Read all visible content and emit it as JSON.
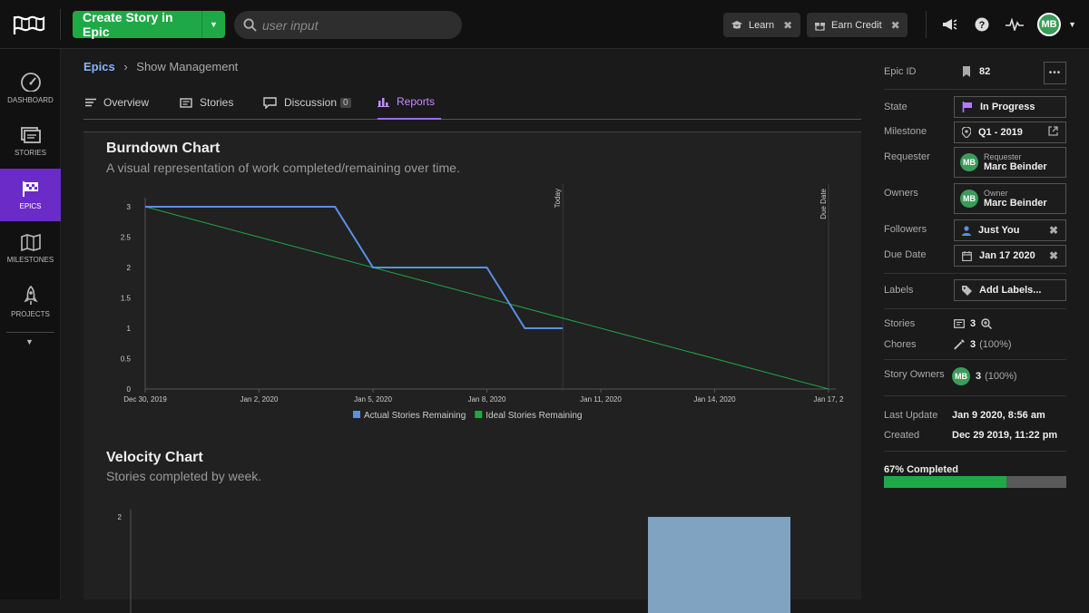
{
  "topbar": {
    "create_label": "Create Story in Epic",
    "search_placeholder": "user input",
    "learn_label": "Learn",
    "earn_label": "Earn Credit",
    "avatar_initials": "MB"
  },
  "sidebar": {
    "items": [
      {
        "label": "DASHBOARD",
        "icon": "dashboard-icon"
      },
      {
        "label": "STORIES",
        "icon": "stories-icon"
      },
      {
        "label": "EPICS",
        "icon": "epics-icon",
        "active": true
      },
      {
        "label": "MILESTONES",
        "icon": "milestones-icon"
      },
      {
        "label": "PROJECTS",
        "icon": "projects-icon"
      }
    ]
  },
  "breadcrumb": {
    "root": "Epics",
    "current": "Show Management"
  },
  "tabs": [
    {
      "label": "Overview"
    },
    {
      "label": "Stories"
    },
    {
      "label": "Discussion",
      "count": "0"
    },
    {
      "label": "Reports",
      "active": true
    }
  ],
  "burndown": {
    "title": "Burndown Chart",
    "subtitle": "A visual representation of work completed/remaining over time."
  },
  "velocity": {
    "title": "Velocity Chart",
    "subtitle": "Stories completed by week."
  },
  "chart_data": [
    {
      "type": "line",
      "title": "Burndown Chart",
      "x_tick_labels": [
        "Dec 30, 2019",
        "Jan 2, 2020",
        "Jan 5, 2020",
        "Jan 8, 2020",
        "Jan 11, 2020",
        "Jan 14, 2020",
        "Jan 17, 2"
      ],
      "y_tick_labels": [
        "0",
        "0.5",
        "1",
        "1.5",
        "2",
        "2.5",
        "3"
      ],
      "ylim": [
        0,
        3
      ],
      "xlim": [
        "2019-12-30",
        "2020-01-17"
      ],
      "markers": [
        {
          "label": "Today",
          "x": "2020-01-10"
        },
        {
          "label": "Due Date",
          "x": "2020-01-17"
        }
      ],
      "series": [
        {
          "name": "Actual Stories Remaining",
          "color": "#5b8fe6",
          "points": [
            [
              "2019-12-30",
              3
            ],
            [
              "2020-01-04",
              3
            ],
            [
              "2020-01-05",
              2
            ],
            [
              "2020-01-08",
              2
            ],
            [
              "2020-01-09",
              1
            ],
            [
              "2020-01-10",
              1
            ]
          ]
        },
        {
          "name": "Ideal Stories Remaining",
          "color": "#1fa946",
          "points": [
            [
              "2019-12-30",
              3
            ],
            [
              "2020-01-17",
              0
            ]
          ]
        }
      ],
      "legend": "bottom"
    },
    {
      "type": "bar",
      "title": "Velocity Chart",
      "y_tick_labels": [
        "2"
      ],
      "series": [
        {
          "color": "#7fa3c0",
          "values": [
            2
          ]
        }
      ]
    }
  ],
  "details": {
    "epic_id_label": "Epic ID",
    "epic_id": "82",
    "state_label": "State",
    "state": "In Progress",
    "milestone_label": "Milestone",
    "milestone": "Q1 - 2019",
    "requester_label": "Requester",
    "requester_role": "Requester",
    "requester_name": "Marc Beinder",
    "owners_label": "Owners",
    "owner_role": "Owner",
    "owner_name": "Marc Beinder",
    "followers_label": "Followers",
    "followers": "Just You",
    "due_label": "Due Date",
    "due": "Jan 17 2020",
    "labels_label": "Labels",
    "labels_btn": "Add Labels...",
    "stories_label": "Stories",
    "stories_count": "3",
    "chores_label": "Chores",
    "chores_count": "3",
    "chores_pct": "(100%)",
    "story_owners_label": "Story Owners",
    "story_owners_count": "3",
    "story_owners_pct": "(100%)",
    "last_update_label": "Last Update",
    "last_update": "Jan 9 2020, 8:56 am",
    "created_label": "Created",
    "created": "Dec 29 2019, 11:22 pm",
    "completed_label": "67% Completed",
    "completed_fraction": 0.67,
    "avatar_initials": "MB"
  }
}
